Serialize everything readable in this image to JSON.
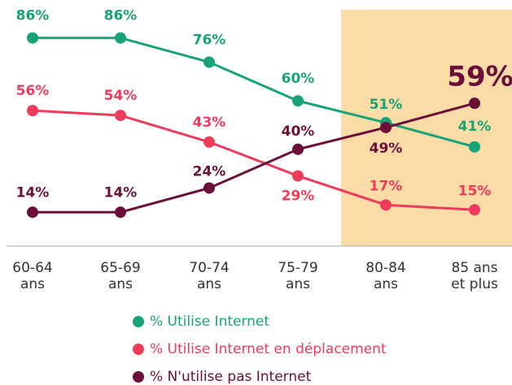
{
  "chart_data": {
    "type": "line",
    "categories": [
      [
        "60-64",
        "ans"
      ],
      [
        "65-69",
        "ans"
      ],
      [
        "70-74",
        "ans"
      ],
      [
        "75-79",
        "ans"
      ],
      [
        "80-84",
        "ans"
      ],
      [
        "85 ans",
        "et plus"
      ]
    ],
    "ylim": [
      0,
      100
    ],
    "series": [
      {
        "name": "% Utilise Internet",
        "color": "#17a278",
        "values": [
          86,
          86,
          76,
          60,
          51,
          41
        ],
        "value_labels": [
          "86%",
          "86%",
          "76%",
          "60%",
          "51%",
          "41%"
        ]
      },
      {
        "name": "% Utilise Internet en déplacement",
        "color": "#ee3b5b",
        "values": [
          56,
          54,
          43,
          29,
          17,
          15
        ],
        "value_labels": [
          "56%",
          "54%",
          "43%",
          "29%",
          "17%",
          "15%"
        ]
      },
      {
        "name": "% N'utilise pas Internet",
        "color": "#6b0f3a",
        "values": [
          14,
          14,
          24,
          40,
          49,
          59
        ],
        "value_labels": [
          "14%",
          "14%",
          "24%",
          "40%",
          "49%",
          "59%"
        ]
      }
    ]
  }
}
